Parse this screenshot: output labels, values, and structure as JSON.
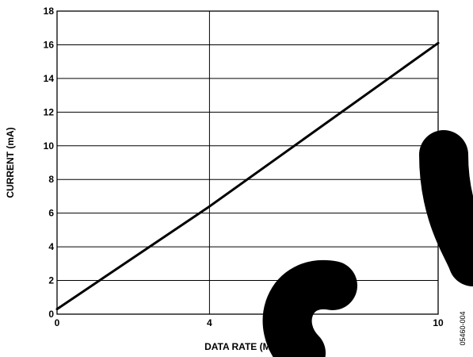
{
  "chart_data": {
    "type": "line",
    "title": "",
    "xlabel": "DATA RATE (Mbps)",
    "ylabel": "CURRENT (mA)",
    "xlim": [
      0,
      10
    ],
    "ylim": [
      0,
      18
    ],
    "x_ticks": [
      "0",
      "4",
      "10"
    ],
    "y_ticks": [
      "0",
      "2",
      "4",
      "6",
      "8",
      "10",
      "12",
      "14",
      "16",
      "18"
    ],
    "grid": {
      "horizontal": true,
      "vertical_at": [
        4
      ]
    },
    "series": [
      {
        "x": [
          0,
          4,
          10
        ],
        "y": [
          0.3,
          6.4,
          16.1
        ]
      }
    ],
    "figure_ref": "05460-004"
  },
  "watermark": {
    "text": "OBSO",
    "color": "#000000"
  }
}
